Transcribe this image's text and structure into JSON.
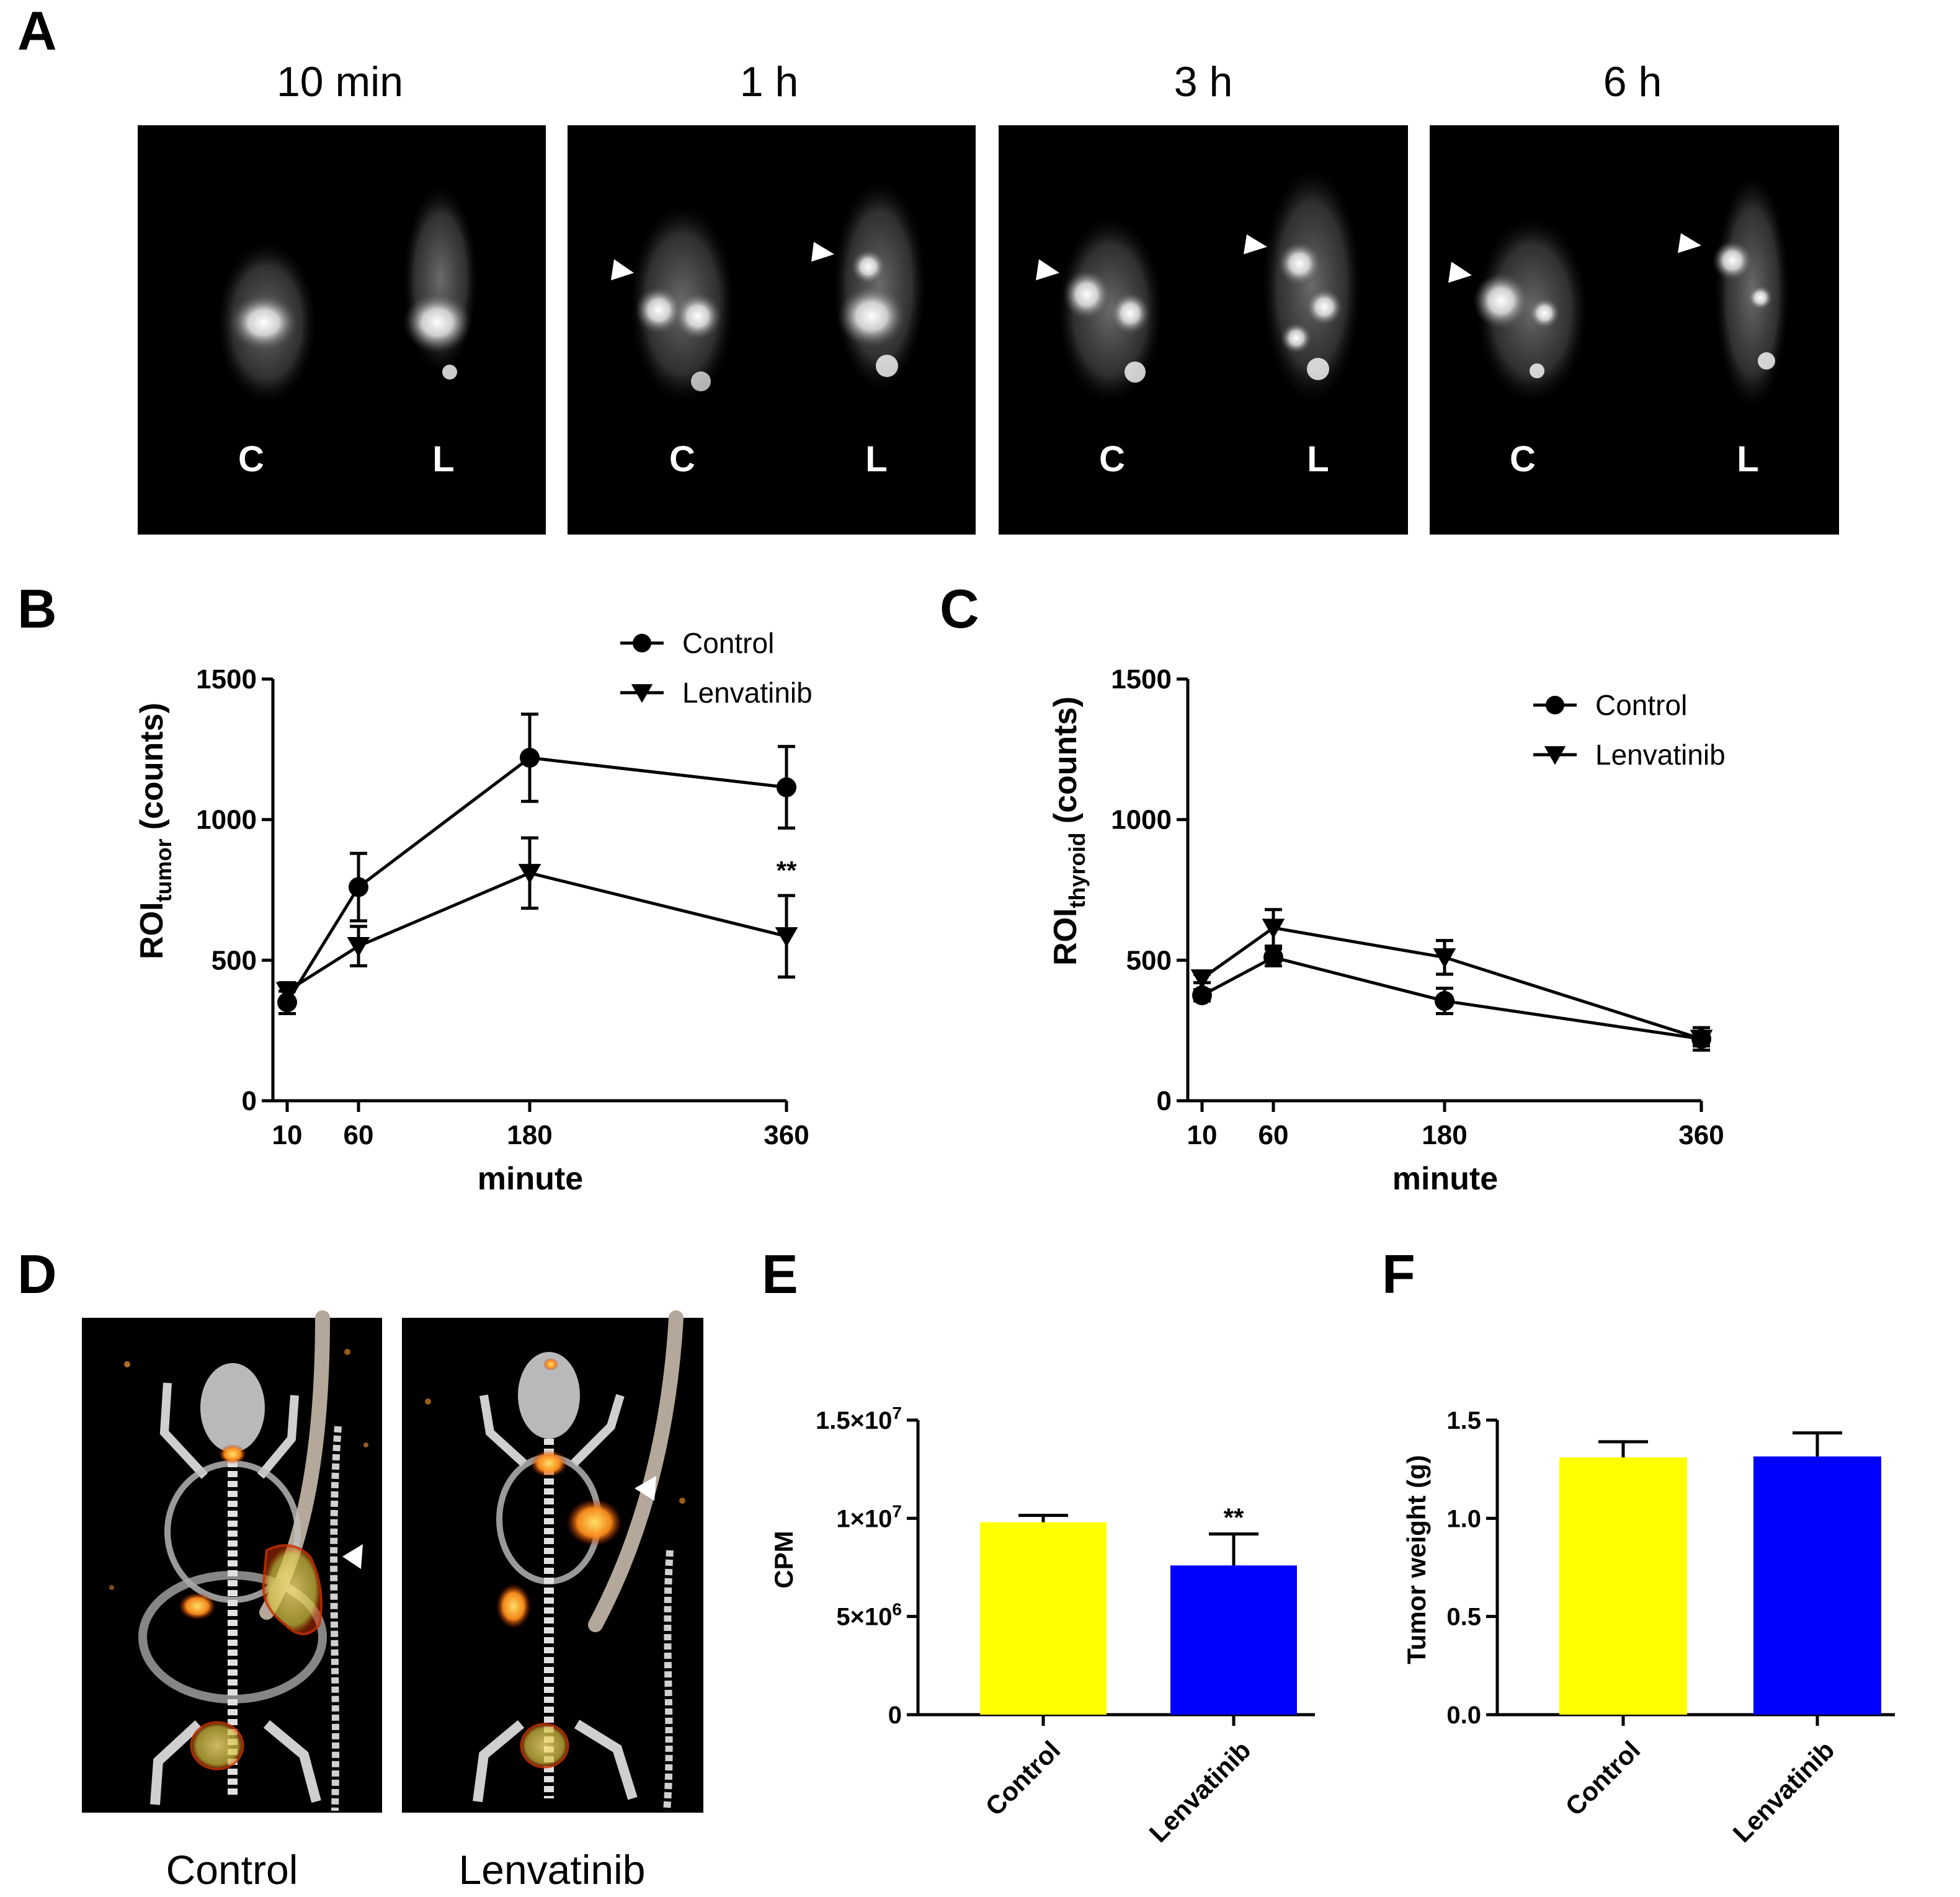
{
  "panels": {
    "a": {
      "letter": "A",
      "timepoints": [
        "10 min",
        "1 h",
        "3 h",
        "6 h"
      ],
      "mouse_labels": [
        "C",
        "L"
      ]
    },
    "b": {
      "letter": "B"
    },
    "c": {
      "letter": "C"
    },
    "d": {
      "letter": "D",
      "labels": [
        "Control",
        "Lenvatinib"
      ]
    },
    "e": {
      "letter": "E"
    },
    "f": {
      "letter": "F"
    }
  },
  "colors": {
    "control": "#ffff00",
    "lenvatinib": "#0000ff",
    "axis": "#000000"
  },
  "chart_data": [
    {
      "id": "B",
      "type": "line",
      "xlabel": "minute",
      "ylabel": "ROI",
      "ylabel_sub": "tumor",
      "ylabel_suffix": " (counts)",
      "x": [
        10,
        60,
        180,
        360
      ],
      "x_ticks": [
        "10",
        "60",
        "180",
        "360"
      ],
      "y_ticks": [
        "0",
        "500",
        "1000",
        "1500"
      ],
      "xlim": [
        0,
        360
      ],
      "ylim": [
        0,
        1500
      ],
      "series": [
        {
          "name": "Control",
          "marker": "circle",
          "values": [
            350,
            760,
            1220,
            1115
          ],
          "errors": [
            40,
            120,
            155,
            145
          ]
        },
        {
          "name": "Lenvatinib",
          "marker": "triangle-down",
          "values": [
            390,
            550,
            810,
            585
          ],
          "errors": [
            30,
            70,
            125,
            145
          ]
        }
      ],
      "annotations": [
        {
          "x": 360,
          "y": 765,
          "text": "**"
        }
      ],
      "legend_position": "top-right"
    },
    {
      "id": "C",
      "type": "line",
      "xlabel": "minute",
      "ylabel": "ROI",
      "ylabel_sub": "thyroid",
      "ylabel_suffix": " (counts)",
      "x": [
        10,
        60,
        180,
        360
      ],
      "x_ticks": [
        "10",
        "60",
        "180",
        "360"
      ],
      "y_ticks": [
        "0",
        "500",
        "1000",
        "1500"
      ],
      "xlim": [
        0,
        360
      ],
      "ylim": [
        0,
        1500
      ],
      "series": [
        {
          "name": "Control",
          "marker": "circle",
          "values": [
            375,
            510,
            355,
            220
          ],
          "errors": [
            20,
            30,
            45,
            40
          ]
        },
        {
          "name": "Lenvatinib",
          "marker": "triangle-down",
          "values": [
            435,
            615,
            510,
            220
          ],
          "errors": [
            15,
            65,
            60,
            25
          ]
        }
      ],
      "legend_position": "top-right"
    },
    {
      "id": "E",
      "type": "bar",
      "ylabel": "CPM",
      "categories": [
        "Control",
        "Lenvatinib"
      ],
      "values": [
        9800000,
        7600000
      ],
      "errors": [
        350000,
        1600000
      ],
      "y_ticks": [
        "0",
        "5×10",
        "1×10",
        "1.5×10"
      ],
      "y_ticks_exp": [
        "",
        "6",
        "7",
        "7"
      ],
      "ylim": [
        0,
        15000000
      ],
      "annotations": [
        {
          "category": "Lenvatinib",
          "text": "**"
        }
      ]
    },
    {
      "id": "F",
      "type": "bar",
      "ylabel": "Tumor weight (g)",
      "categories": [
        "Control",
        "Lenvatinib"
      ],
      "values": [
        1.31,
        1.315
      ],
      "errors": [
        0.08,
        0.12
      ],
      "y_ticks": [
        "0.0",
        "0.5",
        "1.0",
        "1.5"
      ],
      "ylim": [
        0,
        1.5
      ]
    }
  ]
}
